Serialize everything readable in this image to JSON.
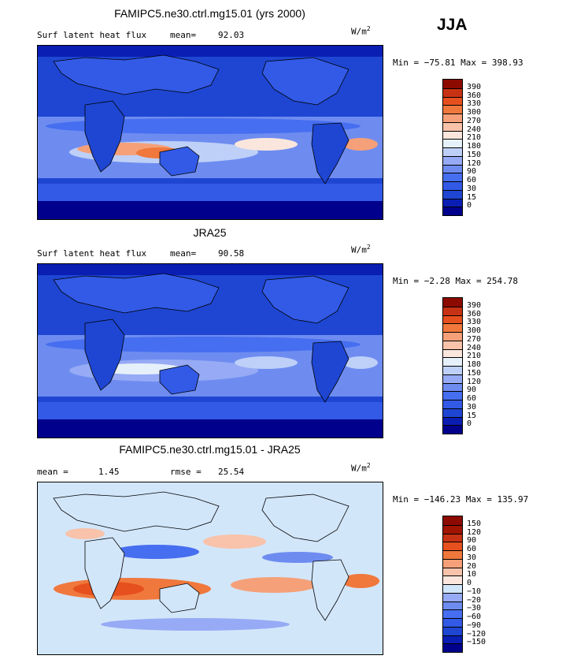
{
  "season": "JJA",
  "units_base": "W/m",
  "units_exp": "2",
  "panels": [
    {
      "id": "model",
      "title": "FAMIPC5.ne30.ctrl.mg15.01 (yrs 2000)",
      "left_label": "Surf latent heat flux",
      "stat_label": "mean=",
      "stat_value": "92.03",
      "minmax": "Min = −75.81 Max = 398.93",
      "levels": [
        "0",
        "15",
        "30",
        "60",
        "90",
        "120",
        "150",
        "180",
        "210",
        "240",
        "270",
        "300",
        "330",
        "360",
        "390"
      ],
      "colors": [
        "#00008c",
        "#0a1eb4",
        "#1e46d2",
        "#325ae6",
        "#466ef0",
        "#6e8cf0",
        "#96aaf5",
        "#bed0f8",
        "#e6f0fa",
        "#fae6dc",
        "#f8c3aa",
        "#f5a078",
        "#f0783c",
        "#e6501e",
        "#c83214",
        "#8c0a00"
      ]
    },
    {
      "id": "obs",
      "title": "JRA25",
      "left_label": "Surf latent heat flux",
      "stat_label": "mean=",
      "stat_value": "90.58",
      "minmax": "Min =  −2.28 Max = 254.78",
      "levels": [
        "0",
        "15",
        "30",
        "60",
        "90",
        "120",
        "150",
        "180",
        "210",
        "240",
        "270",
        "300",
        "330",
        "360",
        "390"
      ],
      "colors": [
        "#00008c",
        "#0a1eb4",
        "#1e46d2",
        "#325ae6",
        "#466ef0",
        "#6e8cf0",
        "#96aaf5",
        "#bed0f8",
        "#e6f0fa",
        "#fae6dc",
        "#f8c3aa",
        "#f5a078",
        "#f0783c",
        "#e6501e",
        "#c83214",
        "#8c0a00"
      ]
    },
    {
      "id": "diff",
      "title": "FAMIPC5.ne30.ctrl.mg15.01 - JRA25",
      "left_label": "mean =",
      "left_value": "1.45",
      "stat_label": "rmse =",
      "stat_value": "25.54",
      "minmax": "Min = −146.23 Max = 135.97",
      "levels": [
        "−150",
        "−120",
        "−90",
        "−60",
        "−30",
        "−20",
        "−10",
        "0",
        "10",
        "20",
        "30",
        "60",
        "90",
        "120",
        "150"
      ],
      "colors": [
        "#00008c",
        "#0a1eb4",
        "#1e46d2",
        "#325ae6",
        "#466ef0",
        "#6e8cf0",
        "#96aaf5",
        "#d2e6fa",
        "#fae6dc",
        "#f8c3aa",
        "#f5a078",
        "#f0783c",
        "#e6501e",
        "#c83214",
        "#a01400",
        "#8c0a00"
      ]
    }
  ],
  "chart_data": [
    {
      "type": "heatmap",
      "title": "FAMIPC5.ne30.ctrl.mg15.01 (yrs 2000)",
      "variable": "Surf latent heat flux",
      "units": "W/m2",
      "mean": 92.03,
      "min": -75.81,
      "max": 398.93,
      "contour_levels": [
        0,
        15,
        30,
        60,
        90,
        120,
        150,
        180,
        210,
        240,
        270,
        300,
        330,
        360,
        390
      ]
    },
    {
      "type": "heatmap",
      "title": "JRA25",
      "variable": "Surf latent heat flux",
      "units": "W/m2",
      "mean": 90.58,
      "min": -2.28,
      "max": 254.78,
      "contour_levels": [
        0,
        15,
        30,
        60,
        90,
        120,
        150,
        180,
        210,
        240,
        270,
        300,
        330,
        360,
        390
      ]
    },
    {
      "type": "heatmap",
      "title": "FAMIPC5.ne30.ctrl.mg15.01 - JRA25",
      "units": "W/m2",
      "mean": 1.45,
      "rmse": 25.54,
      "min": -146.23,
      "max": 135.97,
      "contour_levels": [
        -150,
        -120,
        -90,
        -60,
        -30,
        -20,
        -10,
        0,
        10,
        20,
        30,
        60,
        90,
        120,
        150
      ]
    }
  ]
}
